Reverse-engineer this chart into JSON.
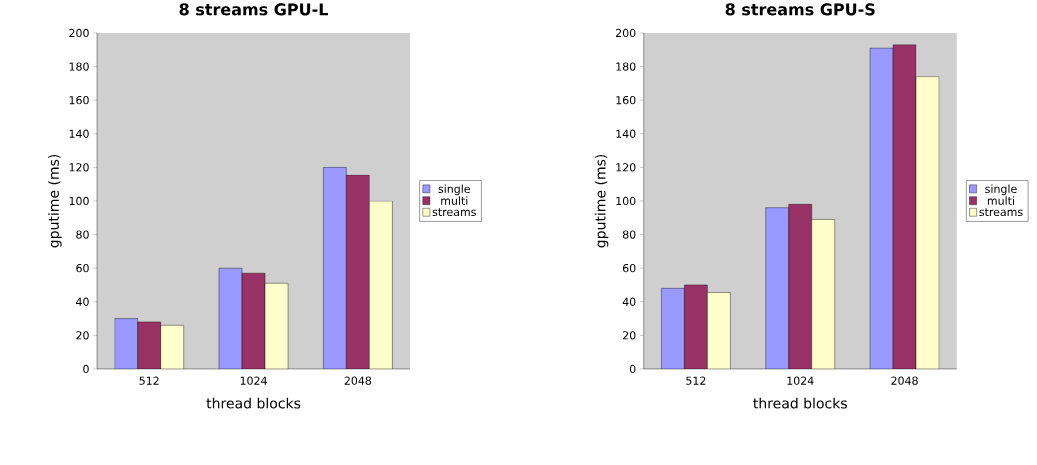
{
  "chart_data": [
    {
      "type": "bar",
      "title": "8 streams GPU-L",
      "xlabel": "thread blocks",
      "ylabel": "gputime (ms)",
      "categories": [
        "512",
        "1024",
        "2048"
      ],
      "series": [
        {
          "name": "single",
          "color": "#9999ff",
          "values": [
            30,
            60,
            120
          ]
        },
        {
          "name": "multi",
          "color": "#993366",
          "values": [
            28,
            57,
            115.5
          ]
        },
        {
          "name": "streams",
          "color": "#ffffcc",
          "values": [
            26,
            51,
            100
          ]
        }
      ],
      "ylim": [
        0,
        200
      ],
      "yticks": [
        0,
        20,
        40,
        60,
        80,
        100,
        120,
        140,
        160,
        180,
        200
      ],
      "grid": false,
      "legend": "right"
    },
    {
      "type": "bar",
      "title": "8 streams GPU-S",
      "xlabel": "thread blocks",
      "ylabel": "gputime (ms)",
      "categories": [
        "512",
        "1024",
        "2048"
      ],
      "series": [
        {
          "name": "single",
          "color": "#9999ff",
          "values": [
            48,
            96,
            191
          ]
        },
        {
          "name": "multi",
          "color": "#993366",
          "values": [
            50,
            98,
            193
          ]
        },
        {
          "name": "streams",
          "color": "#ffffcc",
          "values": [
            45.5,
            89,
            174
          ]
        }
      ],
      "ylim": [
        0,
        200
      ],
      "yticks": [
        0,
        20,
        40,
        60,
        80,
        100,
        120,
        140,
        160,
        180,
        200
      ],
      "grid": false,
      "legend": "right"
    }
  ]
}
